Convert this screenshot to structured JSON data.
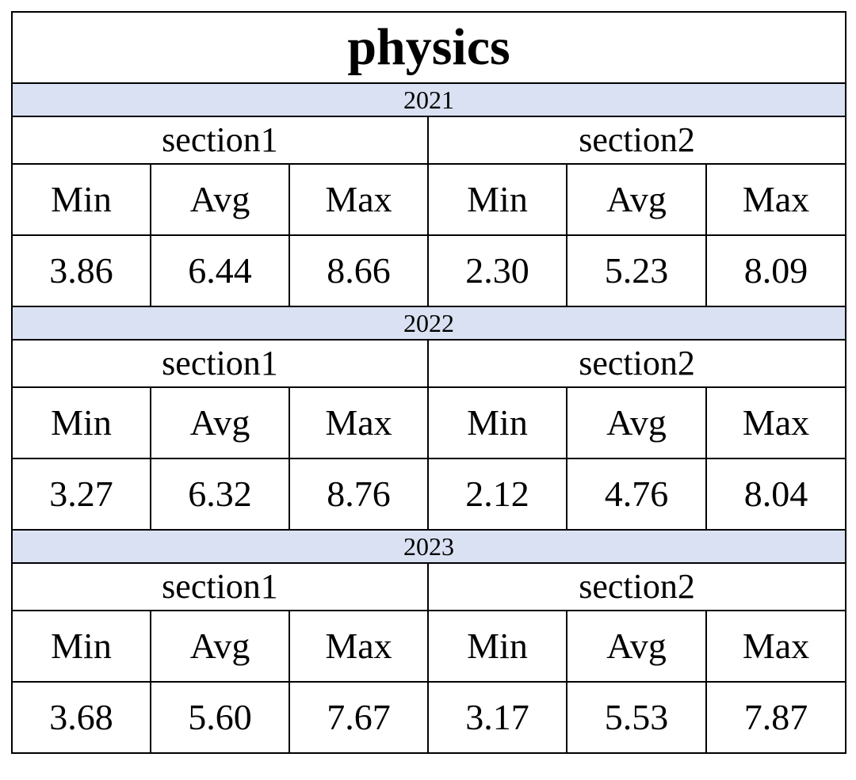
{
  "title": "physics",
  "years": [
    {
      "year": "2021",
      "sections": [
        {
          "name": "section1",
          "headers": [
            "Min",
            "Avg",
            "Max"
          ],
          "values": [
            "3.86",
            "6.44",
            "8.66"
          ]
        },
        {
          "name": "section2",
          "headers": [
            "Min",
            "Avg",
            "Max"
          ],
          "values": [
            "2.30",
            "5.23",
            "8.09"
          ]
        }
      ]
    },
    {
      "year": "2022",
      "sections": [
        {
          "name": "section1",
          "headers": [
            "Min",
            "Avg",
            "Max"
          ],
          "values": [
            "3.27",
            "6.32",
            "8.76"
          ]
        },
        {
          "name": "section2",
          "headers": [
            "Min",
            "Avg",
            "Max"
          ],
          "values": [
            "2.12",
            "4.76",
            "8.04"
          ]
        }
      ]
    },
    {
      "year": "2023",
      "sections": [
        {
          "name": "section1",
          "headers": [
            "Min",
            "Avg",
            "Max"
          ],
          "values": [
            "3.68",
            "5.60",
            "7.67"
          ]
        },
        {
          "name": "section2",
          "headers": [
            "Min",
            "Avg",
            "Max"
          ],
          "values": [
            "3.17",
            "5.53",
            "7.87"
          ]
        }
      ]
    }
  ],
  "colors": {
    "year_band": "#d9e1f2",
    "border": "#000000"
  }
}
